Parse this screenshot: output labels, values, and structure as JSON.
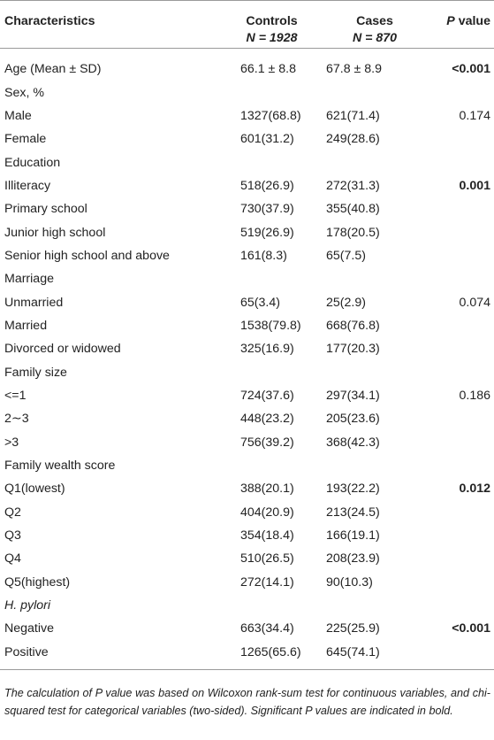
{
  "header": {
    "col1": "Characteristics",
    "col2_line1": "Controls",
    "col2_line2": "N = 1928",
    "col3_line1": "Cases",
    "col3_line2": "N = 870",
    "col4_p": "P",
    "col4_rest": " value"
  },
  "rows": [
    {
      "label": "Age (Mean ± SD)",
      "controls": "66.1 ± 8.8",
      "cases": "67.8 ± 8.9",
      "p": "<0.001",
      "bold": true
    },
    {
      "label": "Sex, %",
      "controls": "",
      "cases": "",
      "p": "",
      "bold": false
    },
    {
      "label": "Male",
      "controls": "1327(68.8)",
      "cases": "621(71.4)",
      "p": "0.174",
      "bold": false
    },
    {
      "label": "Female",
      "controls": "601(31.2)",
      "cases": "249(28.6)",
      "p": "",
      "bold": false
    },
    {
      "label": "Education",
      "controls": "",
      "cases": "",
      "p": "",
      "bold": false
    },
    {
      "label": "Illiteracy",
      "controls": "518(26.9)",
      "cases": "272(31.3)",
      "p": "0.001",
      "bold": true
    },
    {
      "label": "Primary school",
      "controls": "730(37.9)",
      "cases": "355(40.8)",
      "p": "",
      "bold": false
    },
    {
      "label": "Junior high school",
      "controls": "519(26.9)",
      "cases": "178(20.5)",
      "p": "",
      "bold": false
    },
    {
      "label": "Senior high school and above",
      "controls": "161(8.3)",
      "cases": "65(7.5)",
      "p": "",
      "bold": false
    },
    {
      "label": "Marriage",
      "controls": "",
      "cases": "",
      "p": "",
      "bold": false
    },
    {
      "label": "Unmarried",
      "controls": "65(3.4)",
      "cases": "25(2.9)",
      "p": "0.074",
      "bold": false
    },
    {
      "label": "Married",
      "controls": "1538(79.8)",
      "cases": "668(76.8)",
      "p": "",
      "bold": false
    },
    {
      "label": "Divorced or widowed",
      "controls": "325(16.9)",
      "cases": "177(20.3)",
      "p": "",
      "bold": false
    },
    {
      "label": "Family size",
      "controls": "",
      "cases": "",
      "p": "",
      "bold": false
    },
    {
      "label": "<=1",
      "controls": "724(37.6)",
      "cases": "297(34.1)",
      "p": "0.186",
      "bold": false
    },
    {
      "label": "2∼3",
      "controls": "448(23.2)",
      "cases": "205(23.6)",
      "p": "",
      "bold": false
    },
    {
      "label": ">3",
      "controls": "756(39.2)",
      "cases": "368(42.3)",
      "p": "",
      "bold": false
    },
    {
      "label": "Family wealth score",
      "controls": "",
      "cases": "",
      "p": "",
      "bold": false
    },
    {
      "label": "Q1(lowest)",
      "controls": "388(20.1)",
      "cases": "193(22.2)",
      "p": "0.012",
      "bold": true
    },
    {
      "label": "Q2",
      "controls": "404(20.9)",
      "cases": "213(24.5)",
      "p": "",
      "bold": false
    },
    {
      "label": "Q3",
      "controls": "354(18.4)",
      "cases": "166(19.1)",
      "p": "",
      "bold": false
    },
    {
      "label": "Q4",
      "controls": "510(26.5)",
      "cases": "208(23.9)",
      "p": "",
      "bold": false
    },
    {
      "label": "Q5(highest)",
      "controls": "272(14.1)",
      "cases": "90(10.3)",
      "p": "",
      "bold": false
    },
    {
      "label": "H. pylori",
      "controls": "",
      "cases": "",
      "p": "",
      "bold": false,
      "italic": true
    },
    {
      "label": "Negative",
      "controls": "663(34.4)",
      "cases": "225(25.9)",
      "p": "<0.001",
      "bold": true
    },
    {
      "label": "Positive",
      "controls": "1265(65.6)",
      "cases": "645(74.1)",
      "p": "",
      "bold": false
    }
  ],
  "footnote": "The calculation of P value was based on Wilcoxon rank-sum test for continuous variables, and chi-squared test for categorical variables (two-sided). Significant P values are indicated in bold."
}
